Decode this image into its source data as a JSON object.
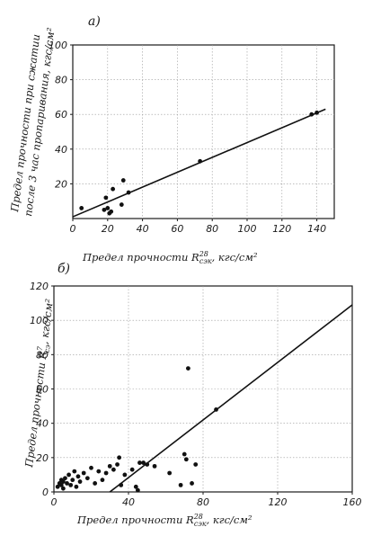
{
  "chart_data": [
    {
      "type": "scatter",
      "panel_label": "а)",
      "xlabel": "Предел прочности R",
      "xlabel_sup": "28",
      "xlabel_sub": "сэк",
      "xlabel_unit": ", кгс/см²",
      "ylabel_line1": "Предел прочности при сжатии",
      "ylabel_line2": "после 3 час пропаривания, кгс/см²",
      "xlim": [
        0,
        150
      ],
      "ylim": [
        0,
        100
      ],
      "xticks": [
        "0",
        "20",
        "40",
        "60",
        "80",
        "100",
        "120",
        "140"
      ],
      "xtick_values": [
        0,
        20,
        40,
        60,
        80,
        100,
        120,
        140
      ],
      "yticks": [
        "20",
        "40",
        "60",
        "80",
        "100"
      ],
      "ytick_values": [
        20,
        40,
        60,
        80,
        100
      ],
      "grid": true,
      "points": [
        [
          5,
          6
        ],
        [
          18,
          5
        ],
        [
          19,
          12
        ],
        [
          20,
          6
        ],
        [
          21,
          3
        ],
        [
          22,
          4
        ],
        [
          23,
          17
        ],
        [
          28,
          8
        ],
        [
          29,
          22
        ],
        [
          32,
          15
        ],
        [
          73,
          33
        ],
        [
          137,
          60
        ],
        [
          140,
          61
        ]
      ],
      "trend_line": [
        [
          0,
          1
        ],
        [
          145,
          63
        ]
      ]
    },
    {
      "type": "scatter",
      "panel_label": "б)",
      "xlabel": "Предел прочности R",
      "xlabel_sup": "28",
      "xlabel_sub": "сэк",
      "xlabel_unit": ", кгс/см²",
      "ylabel": "Предел прочности R",
      "ylabel_sup": "7",
      "ylabel_sub": "сэ",
      "ylabel_unit": ", кгс/см²",
      "xlim": [
        0,
        160
      ],
      "ylim": [
        0,
        120
      ],
      "xticks": [
        "0",
        "40",
        "80",
        "120",
        "160"
      ],
      "xtick_values": [
        0,
        40,
        80,
        120,
        160
      ],
      "yticks": [
        "0",
        "20",
        "40",
        "60",
        "80",
        "100",
        "120"
      ],
      "ytick_values": [
        0,
        20,
        40,
        60,
        80,
        100,
        120
      ],
      "grid": true,
      "points": [
        [
          2,
          3
        ],
        [
          3,
          5
        ],
        [
          4,
          4
        ],
        [
          4,
          7
        ],
        [
          5,
          6
        ],
        [
          5,
          2
        ],
        [
          6,
          8
        ],
        [
          7,
          5
        ],
        [
          8,
          10
        ],
        [
          9,
          4
        ],
        [
          10,
          7
        ],
        [
          11,
          12
        ],
        [
          12,
          3
        ],
        [
          13,
          9
        ],
        [
          14,
          6
        ],
        [
          16,
          11
        ],
        [
          18,
          8
        ],
        [
          20,
          14
        ],
        [
          22,
          5
        ],
        [
          24,
          12
        ],
        [
          26,
          7
        ],
        [
          28,
          11
        ],
        [
          30,
          15
        ],
        [
          32,
          13
        ],
        [
          34,
          16
        ],
        [
          35,
          20
        ],
        [
          36,
          4
        ],
        [
          38,
          10
        ],
        [
          42,
          13
        ],
        [
          44,
          3
        ],
        [
          45,
          1
        ],
        [
          46,
          17
        ],
        [
          48,
          17
        ],
        [
          50,
          16
        ],
        [
          54,
          15
        ],
        [
          62,
          11
        ],
        [
          68,
          4
        ],
        [
          70,
          22
        ],
        [
          71,
          19
        ],
        [
          72,
          72
        ],
        [
          74,
          5
        ],
        [
          76,
          16
        ],
        [
          87,
          48
        ]
      ],
      "trend_line": [
        [
          30,
          0
        ],
        [
          160,
          109
        ]
      ]
    }
  ]
}
